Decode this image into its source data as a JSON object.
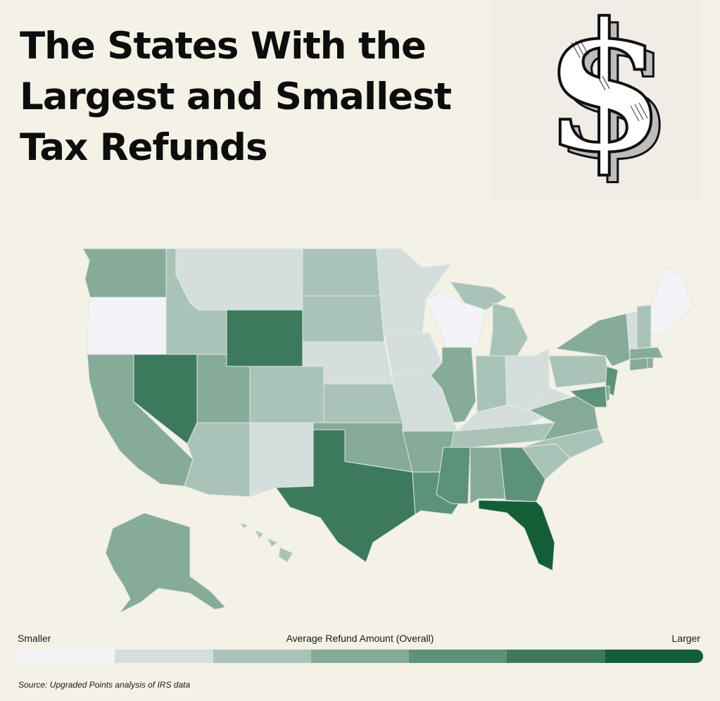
{
  "title": "The States With the Largest and Smallest Tax Refunds",
  "legend": {
    "smaller": "Smaller",
    "title": "Average Refund Amount (Overall)",
    "larger": "Larger",
    "colors": [
      "#f4f3f8",
      "#d4dfdd",
      "#a9c3b8",
      "#86ab98",
      "#5d927a",
      "#3d7a5d",
      "#145e37"
    ]
  },
  "source": "Source: Upgraded Points analysis of IRS data",
  "icon": "dollar-sign-icon",
  "map_data": {
    "metric": "average refund amount",
    "scale": "7-level ordinal (0 = smallest, 6 = largest)",
    "levels": {
      "WA": 3,
      "OR": 0,
      "CA": 3,
      "NV": 5,
      "ID": 2,
      "MT": 1,
      "WY": 5,
      "UT": 3,
      "AZ": 2,
      "NM": 1,
      "CO": 2,
      "ND": 2,
      "SD": 2,
      "NE": 1,
      "KS": 2,
      "OK": 3,
      "TX": 5,
      "MN": 1,
      "IA": 1,
      "MO": 1,
      "AR": 3,
      "LA": 4,
      "WI": 0,
      "IL": 3,
      "MI": 2,
      "IN": 2,
      "OH": 1,
      "KY": 1,
      "TN": 2,
      "MS": 4,
      "AL": 3,
      "GA": 4,
      "FL": 6,
      "SC": 2,
      "NC": 2,
      "VA": 3,
      "WV": 1,
      "PA": 2,
      "NY": 3,
      "NJ": 4,
      "DE": 3,
      "MD": 4,
      "CT": 3,
      "RI": 3,
      "MA": 3,
      "VT": 1,
      "NH": 2,
      "ME": 0,
      "AK": 3,
      "HI": 2
    }
  }
}
